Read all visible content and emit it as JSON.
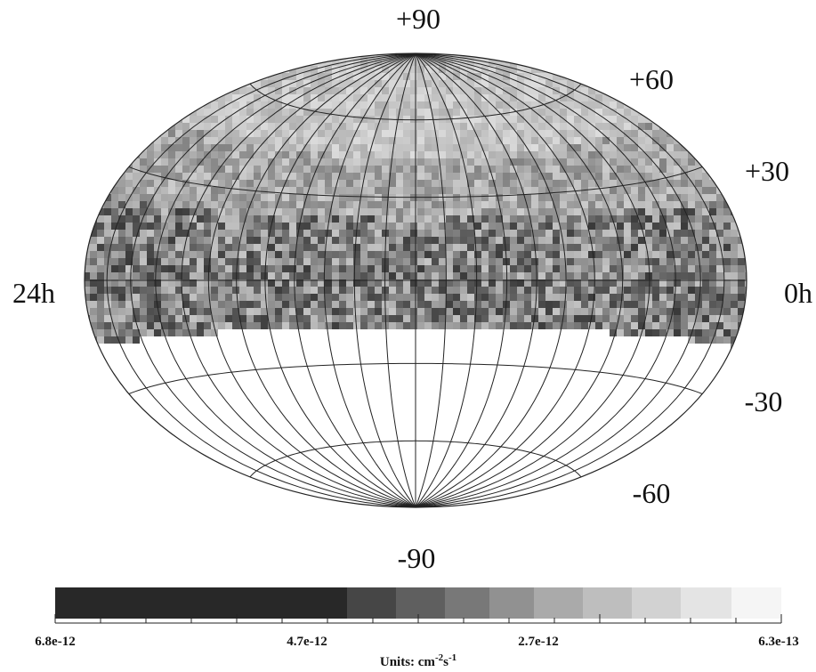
{
  "map": {
    "labels": {
      "top": "+90",
      "n60": "+60",
      "n30": "+30",
      "left": "24h",
      "right": "0h",
      "s30": "-30",
      "s60": "-60",
      "bottom": "-90"
    },
    "colorbar": {
      "ticks": [
        "6.8e-12",
        "4.7e-12",
        "2.7e-12",
        "6.3e-13"
      ],
      "units": {
        "prefix": "Units: cm",
        "exp1": "-2",
        "mid": "s",
        "exp2": "-1"
      }
    }
  }
}
